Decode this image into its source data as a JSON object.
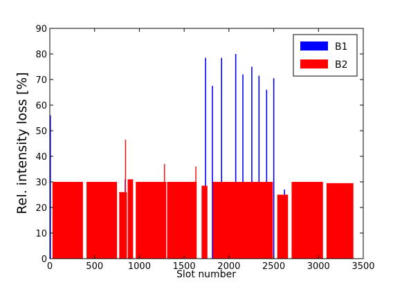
{
  "chart_data": {
    "type": "bar",
    "xlabel": "Slot number",
    "ylabel": "Rel. intensity loss [%]",
    "xlim": [
      0,
      3500
    ],
    "ylim": [
      0,
      90
    ],
    "x_ticks": [
      "0",
      "500",
      "1000",
      "1500",
      "2000",
      "2500",
      "3000",
      "3500"
    ],
    "y_ticks": [
      "0",
      "10",
      "20",
      "30",
      "40",
      "50",
      "60",
      "70",
      "80",
      "90"
    ],
    "grid": false,
    "legend_position": "top-right",
    "colors": {
      "B1": "#0000ff",
      "B2": "#ff0000"
    },
    "series": [
      {
        "name": "B1",
        "spikes": [
          {
            "x": 5,
            "value": 56
          },
          {
            "x": 842,
            "value": 31
          },
          {
            "x": 1738,
            "value": 78.5
          },
          {
            "x": 1815,
            "value": 67.5
          },
          {
            "x": 1917,
            "value": 78.5
          },
          {
            "x": 2075,
            "value": 80
          },
          {
            "x": 2155,
            "value": 72
          },
          {
            "x": 2255,
            "value": 75
          },
          {
            "x": 2335,
            "value": 71.5
          },
          {
            "x": 2420,
            "value": 66
          },
          {
            "x": 2500,
            "value": 70.5
          },
          {
            "x": 2620,
            "value": 27
          },
          {
            "x": 3120,
            "value": 28.5
          }
        ]
      },
      {
        "name": "B2",
        "trains": [
          {
            "start": 30,
            "end": 370,
            "value": 30
          },
          {
            "start": 410,
            "end": 750,
            "value": 30
          },
          {
            "start": 775,
            "end": 860,
            "value": 26
          },
          {
            "start": 870,
            "end": 930,
            "value": 31
          },
          {
            "start": 960,
            "end": 1300,
            "value": 30
          },
          {
            "start": 1310,
            "end": 1640,
            "value": 30
          },
          {
            "start": 1695,
            "end": 1760,
            "value": 28.5
          },
          {
            "start": 1820,
            "end": 2490,
            "value": 30
          },
          {
            "start": 2540,
            "end": 2660,
            "value": 25
          },
          {
            "start": 2700,
            "end": 3050,
            "value": 30
          },
          {
            "start": 3090,
            "end": 3390,
            "value": 29.5
          }
        ],
        "spikes": [
          {
            "x": 845,
            "value": 46.5
          },
          {
            "x": 1280,
            "value": 37
          },
          {
            "x": 1630,
            "value": 36
          }
        ]
      }
    ]
  }
}
